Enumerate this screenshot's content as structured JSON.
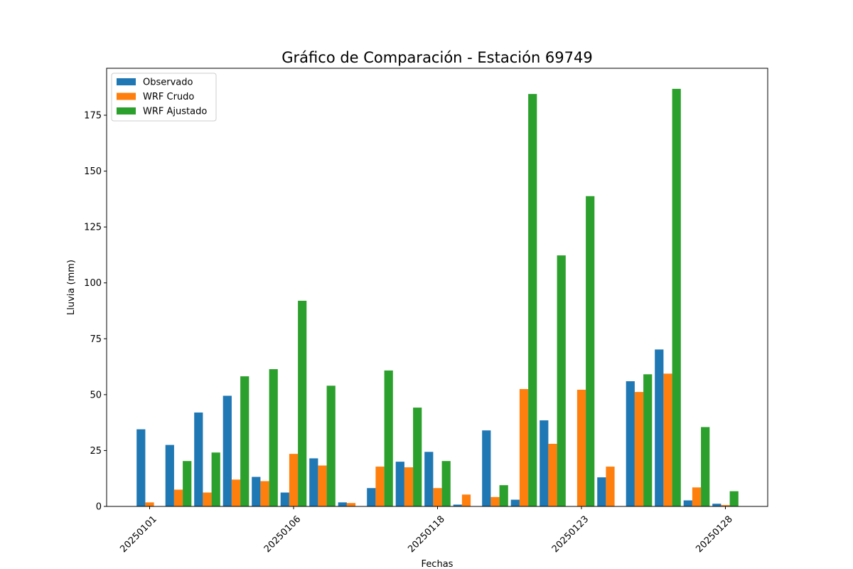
{
  "chart_data": {
    "type": "bar",
    "title": "Gráfico de Comparación - Estación 69749",
    "xlabel": "Fechas",
    "ylabel": "Lluvia (mm)",
    "ylim": [
      0,
      196
    ],
    "yticks": [
      0,
      25,
      50,
      75,
      100,
      125,
      150,
      175
    ],
    "xtick_labels": [
      "20250101",
      "20250106",
      "20250118",
      "20250123",
      "20250128"
    ],
    "xtick_positions": [
      0,
      5,
      10,
      15,
      20
    ],
    "num_groups": 21,
    "legend_position": "top-left",
    "grid": false,
    "series": [
      {
        "name": "Observado",
        "color": "#1f77b4",
        "values": [
          34.5,
          27.5,
          42,
          49.5,
          13.2,
          6.2,
          21.5,
          1.8,
          8.2,
          20,
          24.4,
          0.8,
          34,
          3,
          38.5,
          0,
          13,
          56,
          70.2,
          2.7,
          1.2
        ]
      },
      {
        "name": "WRF Crudo",
        "color": "#ff7f0e",
        "values": [
          1.8,
          7.5,
          6.2,
          12,
          11.3,
          23.5,
          18.3,
          1.5,
          17.8,
          17.5,
          8.2,
          5.3,
          4.2,
          52.5,
          28,
          52.2,
          17.8,
          51.2,
          59.4,
          8.5,
          0.6
        ]
      },
      {
        "name": "WRF Ajustado",
        "color": "#2ca02c",
        "values": [
          0,
          20.3,
          24.1,
          58.2,
          61.4,
          92,
          54,
          0,
          60.8,
          44.2,
          20.3,
          0,
          9.5,
          184.5,
          112.3,
          138.8,
          0,
          59.1,
          186.8,
          35.5,
          6.8
        ]
      }
    ]
  }
}
